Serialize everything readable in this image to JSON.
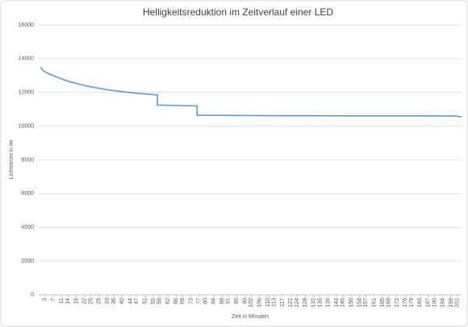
{
  "chart_data": {
    "type": "line",
    "title": "Helligkeitsreduktion im Zeitverlauf einer LED",
    "x_label": "Zeit in Minuten",
    "y_label": "Lichtstrom  in lm",
    "series": [
      {
        "name": "Lichtstrom",
        "color": "#5b9bd5",
        "x": [
          1,
          2,
          4,
          8,
          12,
          16,
          20,
          25,
          30,
          35,
          40,
          45,
          50,
          57,
          57,
          65,
          76,
          76,
          80,
          100,
          120,
          150,
          180,
          200,
          203
        ],
        "values": [
          13500,
          13300,
          13150,
          12950,
          12750,
          12600,
          12470,
          12330,
          12220,
          12120,
          12050,
          11980,
          11920,
          11850,
          11250,
          11230,
          11200,
          10650,
          10650,
          10630,
          10620,
          10610,
          10610,
          10600,
          10550
        ]
      }
    ],
    "xlim": [
      0,
      203
    ],
    "xticks": [
      3,
      7,
      11,
      14,
      18,
      22,
      25,
      29,
      33,
      36,
      40,
      44,
      47,
      51,
      55,
      58,
      62,
      66,
      69,
      73,
      77,
      80,
      84,
      88,
      91,
      95,
      99,
      102,
      106,
      110,
      113,
      117,
      121,
      124,
      128,
      132,
      135,
      139,
      143,
      146,
      150,
      154,
      157,
      161,
      165,
      168,
      172,
      176,
      179,
      183,
      187,
      190,
      194,
      198,
      201
    ],
    "ylim": [
      0,
      16000
    ],
    "yticks": [
      0,
      2000,
      4000,
      6000,
      8000,
      10000,
      12000,
      14000,
      16000
    ],
    "grid": true
  }
}
